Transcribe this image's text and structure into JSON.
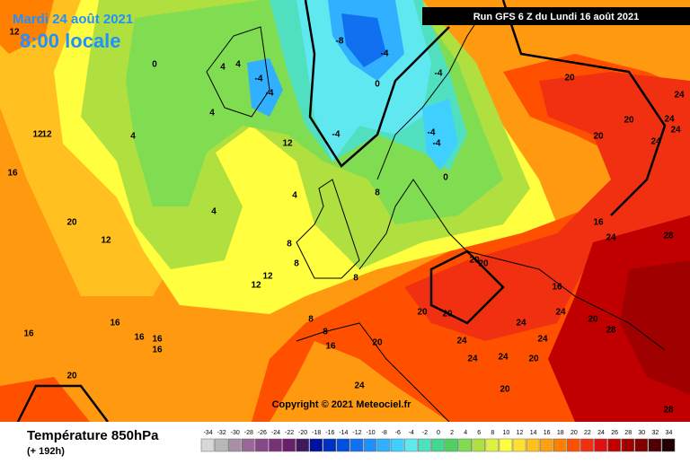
{
  "header": {
    "date": "Mardi 24 août 2021",
    "time": "8:00 locale",
    "run": "Run GFS 6 Z du Lundi 16 août 2021"
  },
  "map": {
    "copyright": "Copyright © 2021 Meteociel.fr",
    "contour_labels": [
      12,
      12,
      16,
      12,
      12,
      16,
      20,
      12,
      16,
      16,
      16,
      16,
      20,
      4,
      0,
      4,
      4,
      4,
      4,
      -4,
      -4,
      -8,
      -4,
      -4,
      0,
      -4,
      -4,
      -4,
      0,
      4,
      8,
      8,
      8,
      8,
      8,
      8,
      12,
      12,
      12,
      16,
      20,
      20,
      20,
      20,
      20,
      24,
      24,
      24,
      20,
      24,
      20,
      24,
      24,
      24,
      20,
      20,
      16,
      16,
      20,
      24,
      24,
      28,
      24,
      28,
      28,
      20,
      20,
      24,
      24
    ]
  },
  "legend": {
    "title": "Température 850hPa",
    "subtitle": "(+ 192h)",
    "ticks": [
      -34,
      -32,
      -30,
      -28,
      -26,
      -24,
      -22,
      -20,
      -18,
      -16,
      -14,
      -12,
      -10,
      -8,
      -6,
      -4,
      -2,
      0,
      2,
      4,
      6,
      8,
      10,
      12,
      14,
      16,
      18,
      20,
      22,
      24,
      26,
      28,
      30,
      32,
      34
    ],
    "colors": [
      "#d8d8d8",
      "#b8b8b8",
      "#a890a8",
      "#986898",
      "#884888",
      "#783078",
      "#682068",
      "#401860",
      "#0010a0",
      "#0030c0",
      "#0050e0",
      "#1070f0",
      "#2090ff",
      "#30b0ff",
      "#40d0ff",
      "#60e8f0",
      "#50e0c0",
      "#40d890",
      "#50d060",
      "#80dc50",
      "#b0e040",
      "#e0f040",
      "#ffff40",
      "#ffe030",
      "#ffc020",
      "#ffa010",
      "#ff8000",
      "#ff5000",
      "#f03010",
      "#e01010",
      "#c00000",
      "#a00000",
      "#800000",
      "#500000",
      "#200000"
    ]
  }
}
